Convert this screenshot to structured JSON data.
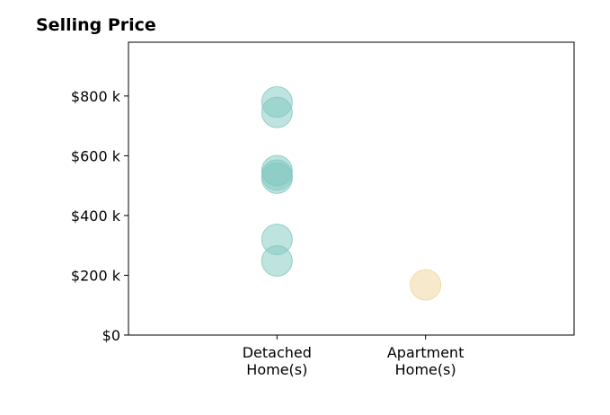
{
  "chart_data": {
    "type": "scatter",
    "title": "Selling Price",
    "xlabel": "",
    "ylabel": "",
    "categories": [
      "Detached Home(s)",
      "Apartment Home(s)"
    ],
    "category_lines": [
      [
        "Detached",
        "Home(s)"
      ],
      [
        "Apartment",
        "Home(s)"
      ]
    ],
    "x_range": [
      0,
      3
    ],
    "ylim": [
      0,
      980000
    ],
    "y_ticks": [
      0,
      200000,
      400000,
      600000,
      800000
    ],
    "y_tick_labels": [
      "$0",
      "$200 k",
      "$400 k",
      "$600 k",
      "$800 k"
    ],
    "grid": false,
    "series": [
      {
        "category": "Detached Home(s)",
        "color": "#7fc8bf",
        "values": [
          780000,
          745000,
          550000,
          535000,
          525000,
          320000,
          248000
        ]
      },
      {
        "category": "Apartment Home(s)",
        "color": "#f0d59a",
        "values": [
          168000
        ]
      }
    ]
  }
}
